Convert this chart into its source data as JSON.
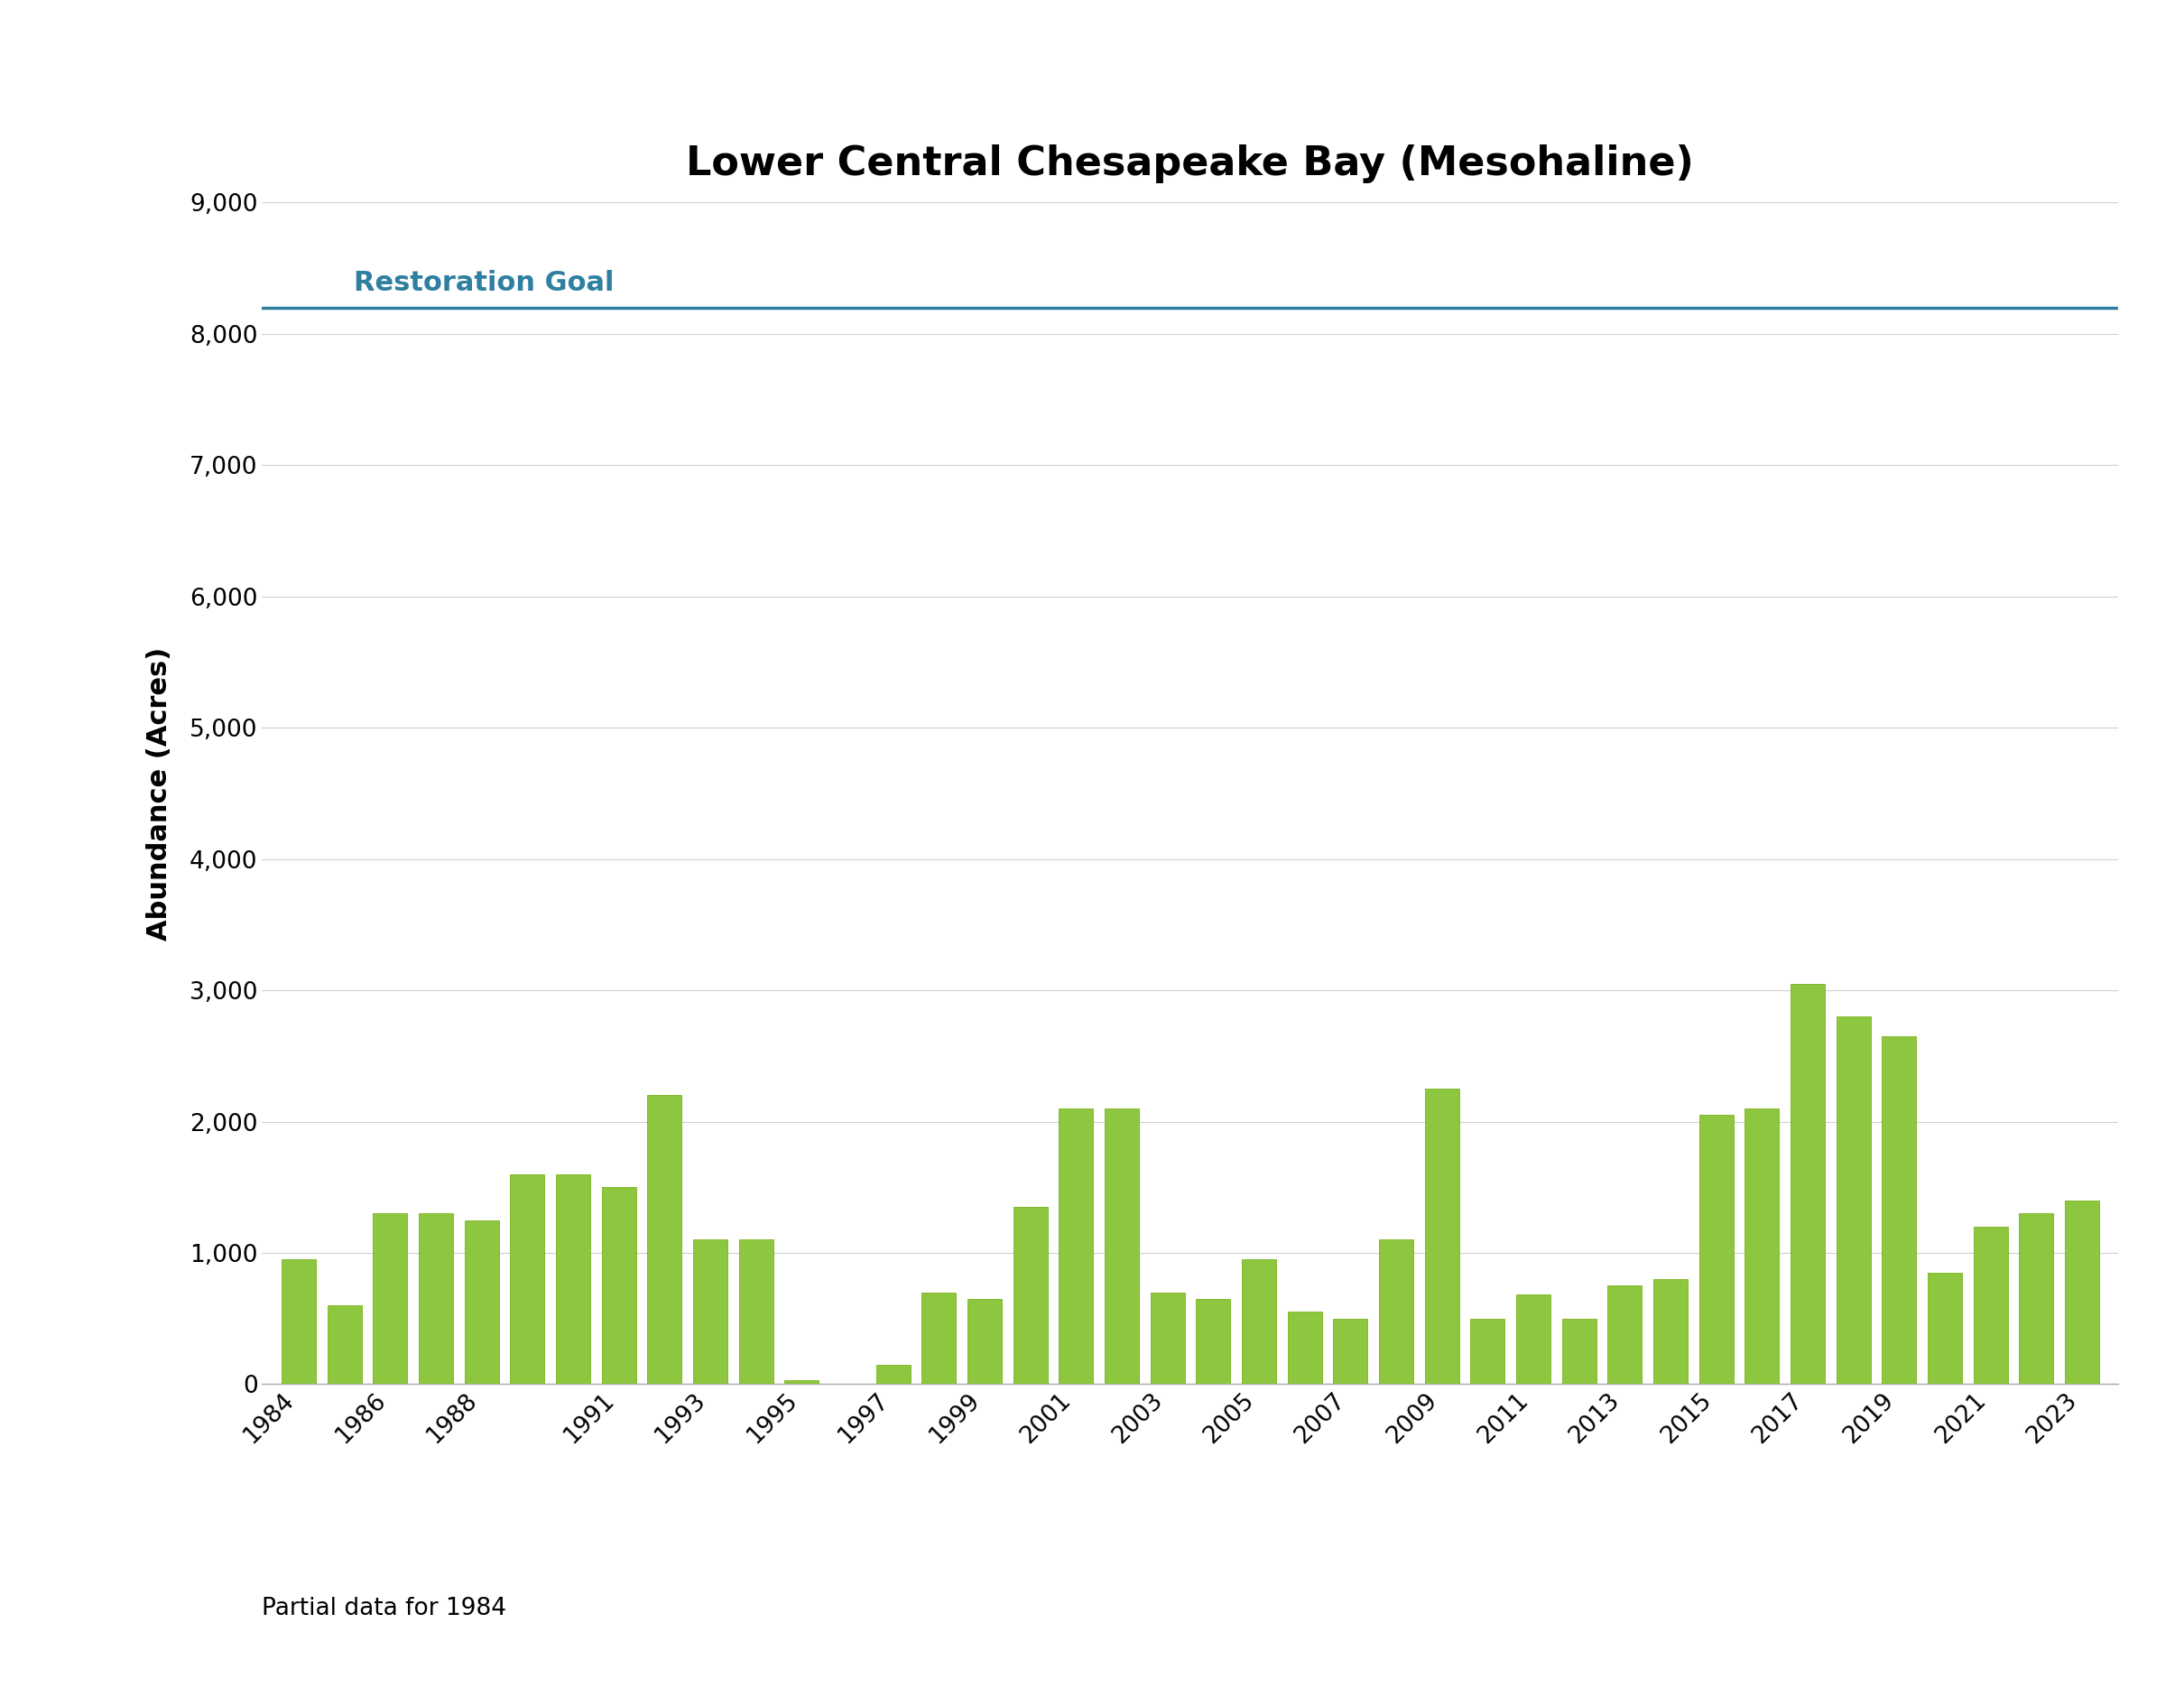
{
  "title": "Lower Central Chesapeake Bay (Mesohaline)",
  "ylabel": "Abundance (Acres)",
  "restoration_goal": 8200,
  "restoration_goal_label": "Restoration Goal",
  "restoration_goal_color": "#2e7fa0",
  "bar_color": "#8dc63f",
  "bar_edge_color": "#6aaa00",
  "footnote": "Partial data for 1984",
  "ylim": [
    0,
    9000
  ],
  "yticks": [
    0,
    1000,
    2000,
    3000,
    4000,
    5000,
    6000,
    7000,
    8000,
    9000
  ],
  "years": [
    1984,
    1985,
    1986,
    1987,
    1988,
    1989,
    1990,
    1991,
    1992,
    1993,
    1994,
    1995,
    1996,
    1997,
    1998,
    1999,
    2000,
    2001,
    2002,
    2003,
    2004,
    2005,
    2006,
    2007,
    2008,
    2009,
    2010,
    2011,
    2012,
    2013,
    2014,
    2015,
    2016,
    2017,
    2018,
    2019,
    2020,
    2021,
    2022,
    2023
  ],
  "values": [
    950,
    600,
    1300,
    1300,
    1250,
    1600,
    1600,
    1500,
    2200,
    1100,
    1100,
    30,
    0,
    150,
    700,
    650,
    1350,
    2100,
    2100,
    700,
    650,
    950,
    550,
    500,
    1100,
    2250,
    500,
    680,
    500,
    750,
    800,
    2050,
    2100,
    3050,
    2800,
    2650,
    850,
    1200,
    1300,
    1400
  ],
  "xtick_years": [
    1984,
    1986,
    1988,
    1991,
    1993,
    1995,
    1997,
    1999,
    2001,
    2003,
    2005,
    2007,
    2009,
    2011,
    2013,
    2015,
    2017,
    2019,
    2021,
    2023
  ],
  "background_color": "#ffffff",
  "title_fontsize": 32,
  "label_fontsize": 22,
  "tick_fontsize": 19,
  "footnote_fontsize": 19
}
